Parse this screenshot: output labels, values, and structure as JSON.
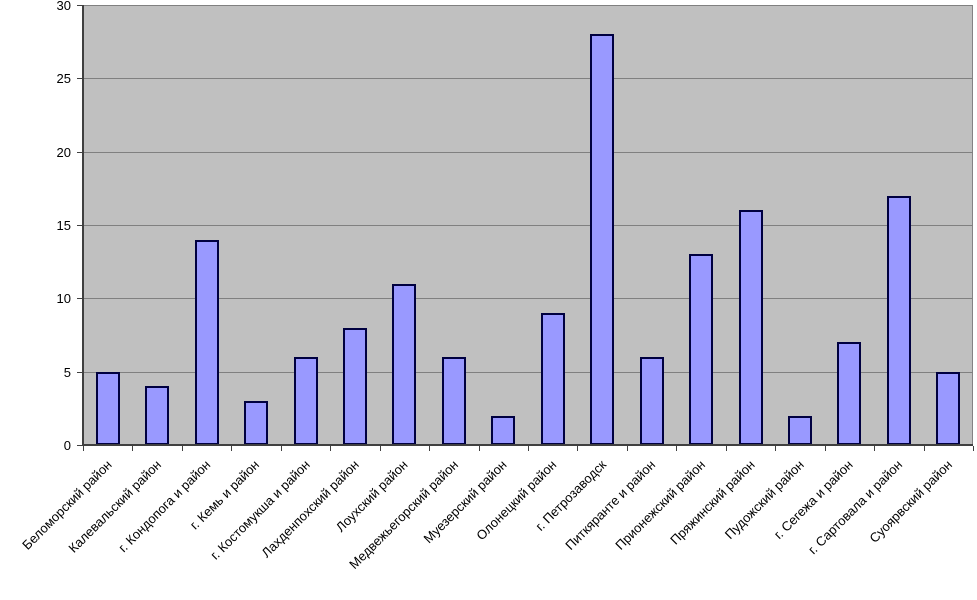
{
  "chart_data": {
    "type": "bar",
    "title": "",
    "xlabel": "",
    "ylabel": "",
    "categories": [
      "Беломорский район",
      "Калевальский район",
      "г. Кондопога и район",
      "г. Кемь и район",
      "г. Костомукша и район",
      "Лахденпохский район",
      "Лоухский район",
      "Медвежьегорский район",
      "Муезерский район",
      "Олонецкий район",
      "г. Петрозаводск",
      "Питкяранте и район",
      "Прионежский район",
      "Пряжинский район",
      "Пудожский район",
      "г. Сегежа и район",
      "г. Сартовала и район",
      "Суоярвский район"
    ],
    "values": [
      5,
      4,
      14,
      3,
      6,
      8,
      11,
      6,
      2,
      9,
      28,
      6,
      13,
      16,
      2,
      7,
      17,
      5
    ],
    "ylim": [
      0,
      30
    ],
    "yticks": [
      0,
      5,
      10,
      15,
      20,
      25,
      30
    ],
    "grid": true,
    "legend": false,
    "colors": {
      "bar_fill": "#9999FF",
      "bar_border": "#000040",
      "plot_background": "#C0C0C0",
      "gridline": "#808080",
      "axis": "#404040",
      "page_background": "#FFFFFF",
      "label_text": "#000000"
    }
  }
}
